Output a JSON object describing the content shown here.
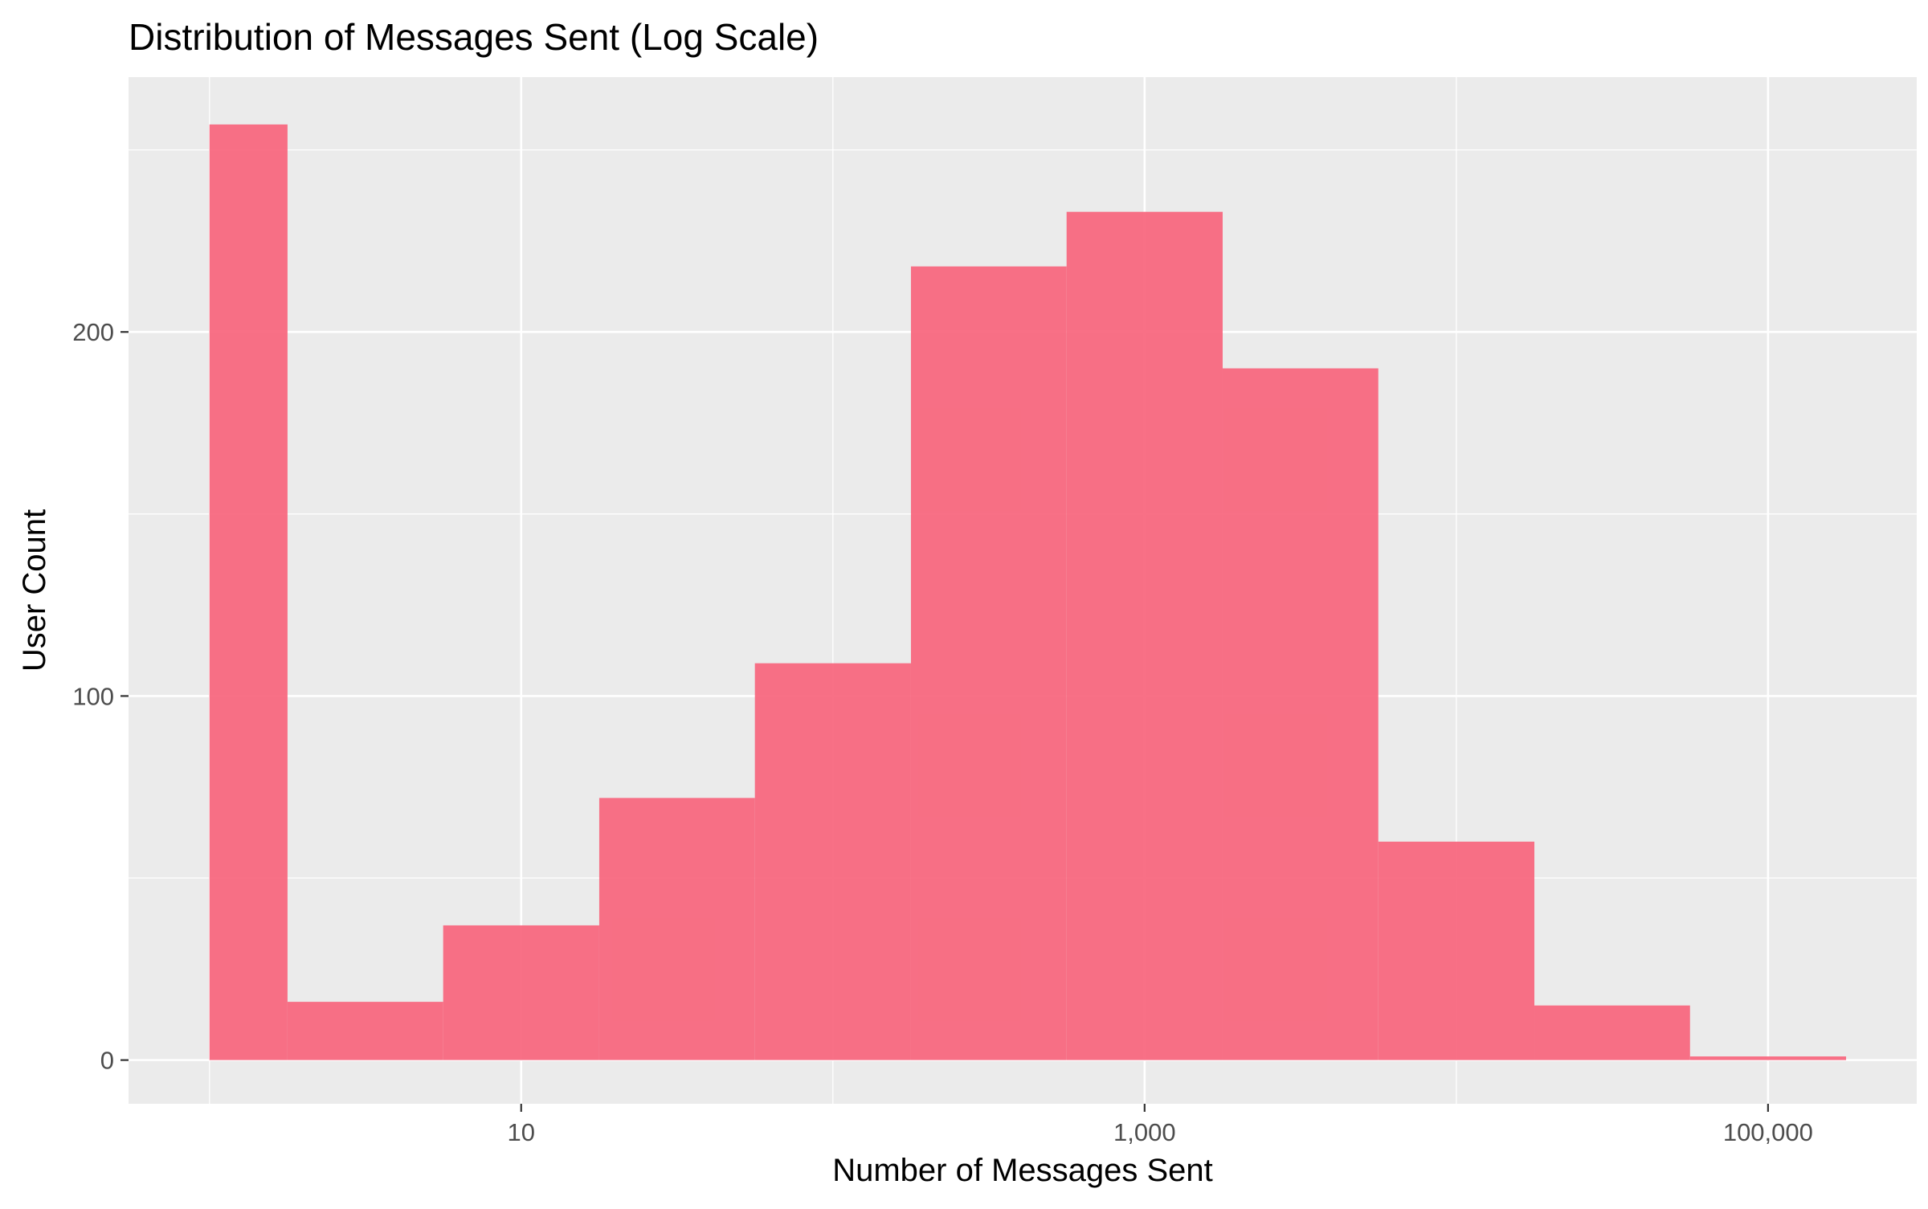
{
  "chart_data": {
    "type": "bar",
    "title": "Distribution of Messages Sent (Log Scale)",
    "xlabel": "Number of Messages Sent",
    "ylabel": "User Count",
    "x_scale": "log10",
    "xlim": [
      0.55,
      300000
    ],
    "ylim": [
      -12,
      270
    ],
    "x_ticks": [
      {
        "value": 10,
        "label": "10"
      },
      {
        "value": 1000,
        "label": "1,000"
      },
      {
        "value": 100000,
        "label": "100,000"
      }
    ],
    "y_ticks": [
      {
        "value": 0,
        "label": "0"
      },
      {
        "value": 100,
        "label": "100"
      },
      {
        "value": 200,
        "label": "200"
      }
    ],
    "x_minor_gridlines": [
      1,
      100,
      10000
    ],
    "y_minor_gridlines": [
      50,
      150,
      250
    ],
    "bins": [
      {
        "x_min": 1,
        "x_max": 1.78,
        "count": 257
      },
      {
        "x_min": 1.78,
        "x_max": 5.62,
        "count": 16
      },
      {
        "x_min": 5.62,
        "x_max": 17.8,
        "count": 37
      },
      {
        "x_min": 17.8,
        "x_max": 56.2,
        "count": 72
      },
      {
        "x_min": 56.2,
        "x_max": 178,
        "count": 109
      },
      {
        "x_min": 178,
        "x_max": 562,
        "count": 218
      },
      {
        "x_min": 562,
        "x_max": 1780,
        "count": 233
      },
      {
        "x_min": 1780,
        "x_max": 5620,
        "count": 190
      },
      {
        "x_min": 5620,
        "x_max": 17800,
        "count": 60
      },
      {
        "x_min": 17800,
        "x_max": 56200,
        "count": 15
      },
      {
        "x_min": 56200,
        "x_max": 178000,
        "count": 1
      }
    ],
    "grid": true,
    "legend": "none",
    "colors": {
      "bar": "#F8687F",
      "panel": "#EBEBEB",
      "grid": "#FFFFFF",
      "text": "#000000",
      "tick_text": "#4D4D4D",
      "tick_mark": "#333333"
    }
  }
}
